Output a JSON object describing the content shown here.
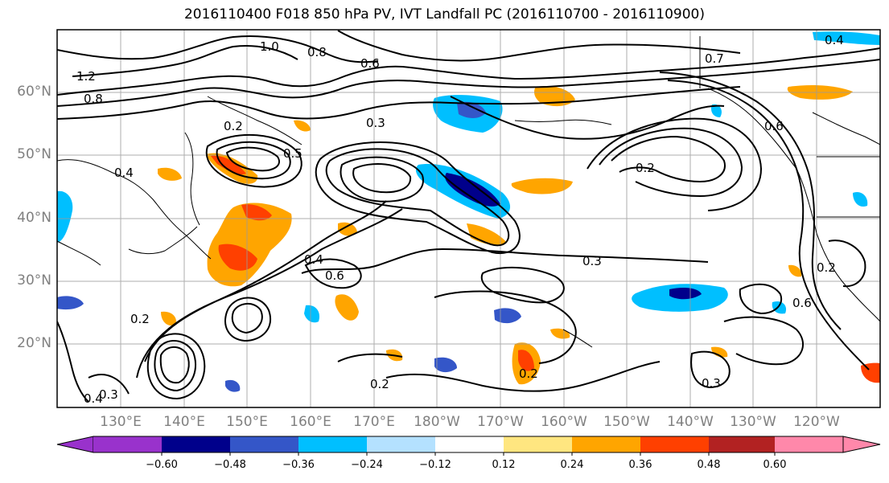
{
  "title": "2016110400 F018 850 hPa PV, IVT Landfall PC (2016110700 - 2016110900)",
  "lat_labels": [
    "60°N",
    "50°N",
    "40°N",
    "30°N",
    "20°N"
  ],
  "lon_labels": [
    "130°E",
    "140°E",
    "150°E",
    "160°E",
    "170°E",
    "180°W",
    "170°W",
    "160°W",
    "150°W",
    "140°W",
    "130°W",
    "120°W"
  ],
  "contour_labels": [
    "1.0",
    "0.8",
    "1.2",
    "0.8",
    "0.6",
    "0.4",
    "0.2",
    "0.3",
    "0.5",
    "0.4",
    "0.6",
    "0.7",
    "0.2",
    "0.6",
    "0.3",
    "0.4",
    "0.2",
    "0.3",
    "0.4",
    "0.2",
    "0.2",
    "0.2",
    "0.6",
    "0.3"
  ],
  "colorbar": {
    "colors": [
      "#9932CC",
      "#00008B",
      "#3456C8",
      "#00BFFF",
      "#B4E1FF",
      "#FFFFFF",
      "#FFE680",
      "#FFA500",
      "#FF4000",
      "#B22222",
      "#FF88AA"
    ],
    "tick_labels": [
      "−0.60",
      "−0.48",
      "−0.36",
      "−0.24",
      "−0.12",
      "0.12",
      "0.24",
      "0.36",
      "0.48",
      "0.60"
    ]
  }
}
